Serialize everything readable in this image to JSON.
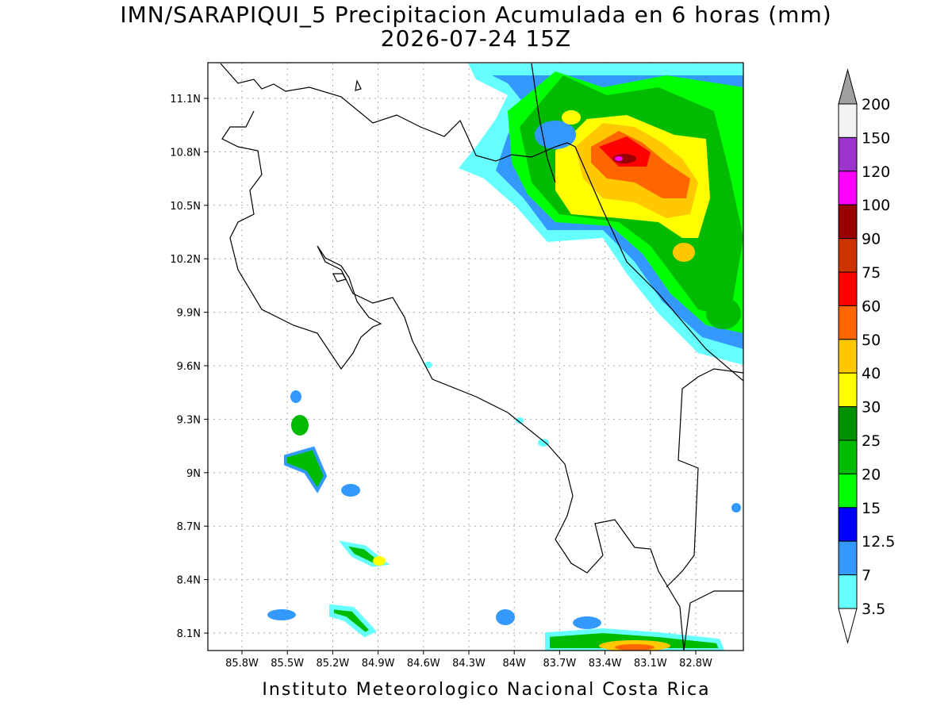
{
  "title": [
    "IMN/SARAPIQUI_5 Precipitacion Acumulada en 6 horas (mm)",
    "2026-07-24 15Z"
  ],
  "map": {
    "x_labels": [
      "85.8W",
      "85.5W",
      "85.2W",
      "84.9W",
      "84.6W",
      "84.3W",
      "84W",
      "83.7W",
      "83.4W",
      "83.1W",
      "82.8W"
    ],
    "y_labels": [
      "11.1N",
      "10.8N",
      "10.5N",
      "10.2N",
      "9.9N",
      "9.6N",
      "9.3N",
      "9N",
      "8.7N",
      "8.4N",
      "8.1N"
    ]
  },
  "legend": {
    "labels": [
      "200",
      "150",
      "120",
      "100",
      "90",
      "75",
      "60",
      "50",
      "40",
      "30",
      "25",
      "20",
      "15",
      "12.5",
      "7",
      "3.5"
    ],
    "colors": [
      "#f2f2f2",
      "#9b33cc",
      "#ff00ff",
      "#990000",
      "#cc3300",
      "#ff0000",
      "#ff6600",
      "#ffc800",
      "#ffff00",
      "#009100",
      "#00bb00",
      "#00ff00",
      "#0000ff",
      "#3399ff",
      "#66ffff"
    ]
  },
  "footer": "Instituto Meteorologico Nacional Costa Rica"
}
